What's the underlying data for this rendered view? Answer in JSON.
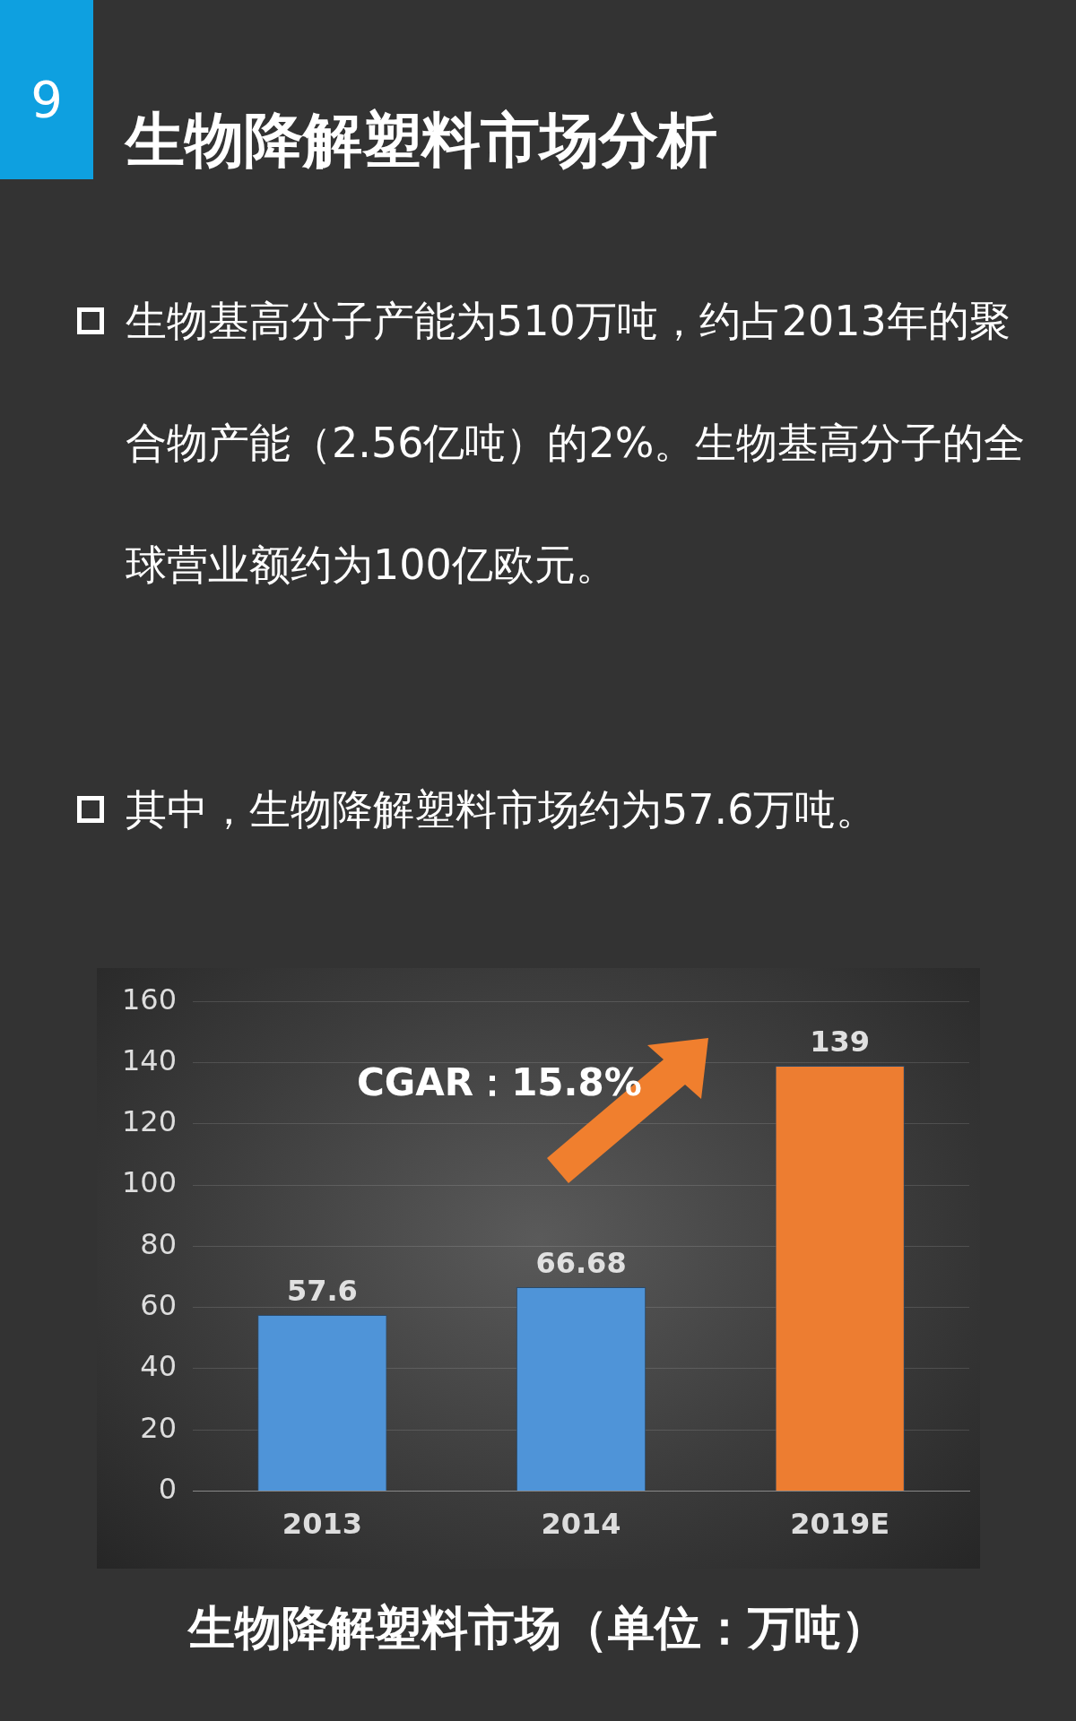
{
  "chart_data": {
    "type": "bar",
    "title": "生物降解塑料市场分析",
    "xlabel": "生物降解塑料市场（单位：万吨）",
    "categories": [
      "2013",
      "2014",
      "2019E"
    ],
    "values": [
      57.6,
      66.68,
      139
    ],
    "colors": [
      "#4f94d8",
      "#4f94d8",
      "#ed7d31"
    ],
    "ylim": [
      0,
      160
    ],
    "yticks": [
      0,
      20,
      40,
      60,
      80,
      100,
      120,
      140,
      160
    ],
    "grid": "y",
    "legend": false,
    "data_labels": true,
    "annotations": [
      "9",
      "生物基高分子产能为510万吨，约占2013年的聚合物产能（2.56亿吨）的2%。生物基高分子的全球营业额约为100亿欧元。",
      "其中，生物降解塑料市场约为57.6万吨。",
      "CGAR：15.8%"
    ]
  }
}
